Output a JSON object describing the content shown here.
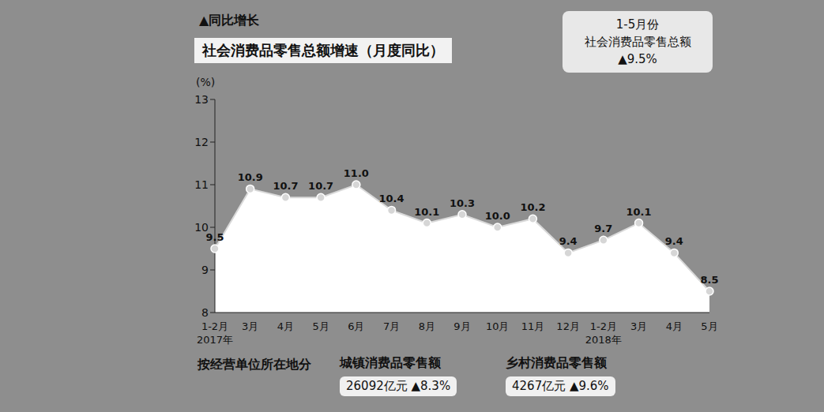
{
  "chart_data": {
    "type": "area",
    "top_label": "▲同比增长",
    "title": "社会消费品零售总额增速（月度同比）",
    "y_label": "(%)",
    "categories": [
      "1-2月",
      "3月",
      "4月",
      "5月",
      "6月",
      "7月",
      "8月",
      "9月",
      "10月",
      "11月",
      "12月",
      "1-2月",
      "3月",
      "4月",
      "5月"
    ],
    "category_years": [
      "2017年",
      null,
      null,
      null,
      null,
      null,
      null,
      null,
      null,
      null,
      null,
      "2018年",
      null,
      null,
      null
    ],
    "values": [
      9.5,
      10.9,
      10.7,
      10.7,
      11.0,
      10.4,
      10.1,
      10.3,
      10.0,
      10.2,
      9.4,
      9.7,
      10.1,
      9.4,
      8.5
    ],
    "value_labels": [
      "9.5",
      "10.9",
      "10.7",
      "10.7",
      "11.0",
      "10.4",
      "10.1",
      "10.3",
      "10.0",
      "10.2",
      "9.4",
      "9.7",
      "10.1",
      "9.4",
      "8.5"
    ],
    "ylim": [
      8,
      13
    ],
    "yticks": [
      8,
      9,
      10,
      11,
      12,
      13
    ],
    "grid": false,
    "data_labels": true,
    "color": "#ffffff",
    "callout": [
      "1-5月份",
      "社会消费品零售总额",
      "▲9.5%"
    ],
    "breakdown": {
      "heading": "按经营单位所在地分",
      "items": [
        {
          "name": "城镇消费品零售额",
          "value_text": "26092亿元 ▲8.3%"
        },
        {
          "name": "乡村消费品零售额",
          "value_text": "4267亿元 ▲9.6%"
        }
      ]
    }
  }
}
